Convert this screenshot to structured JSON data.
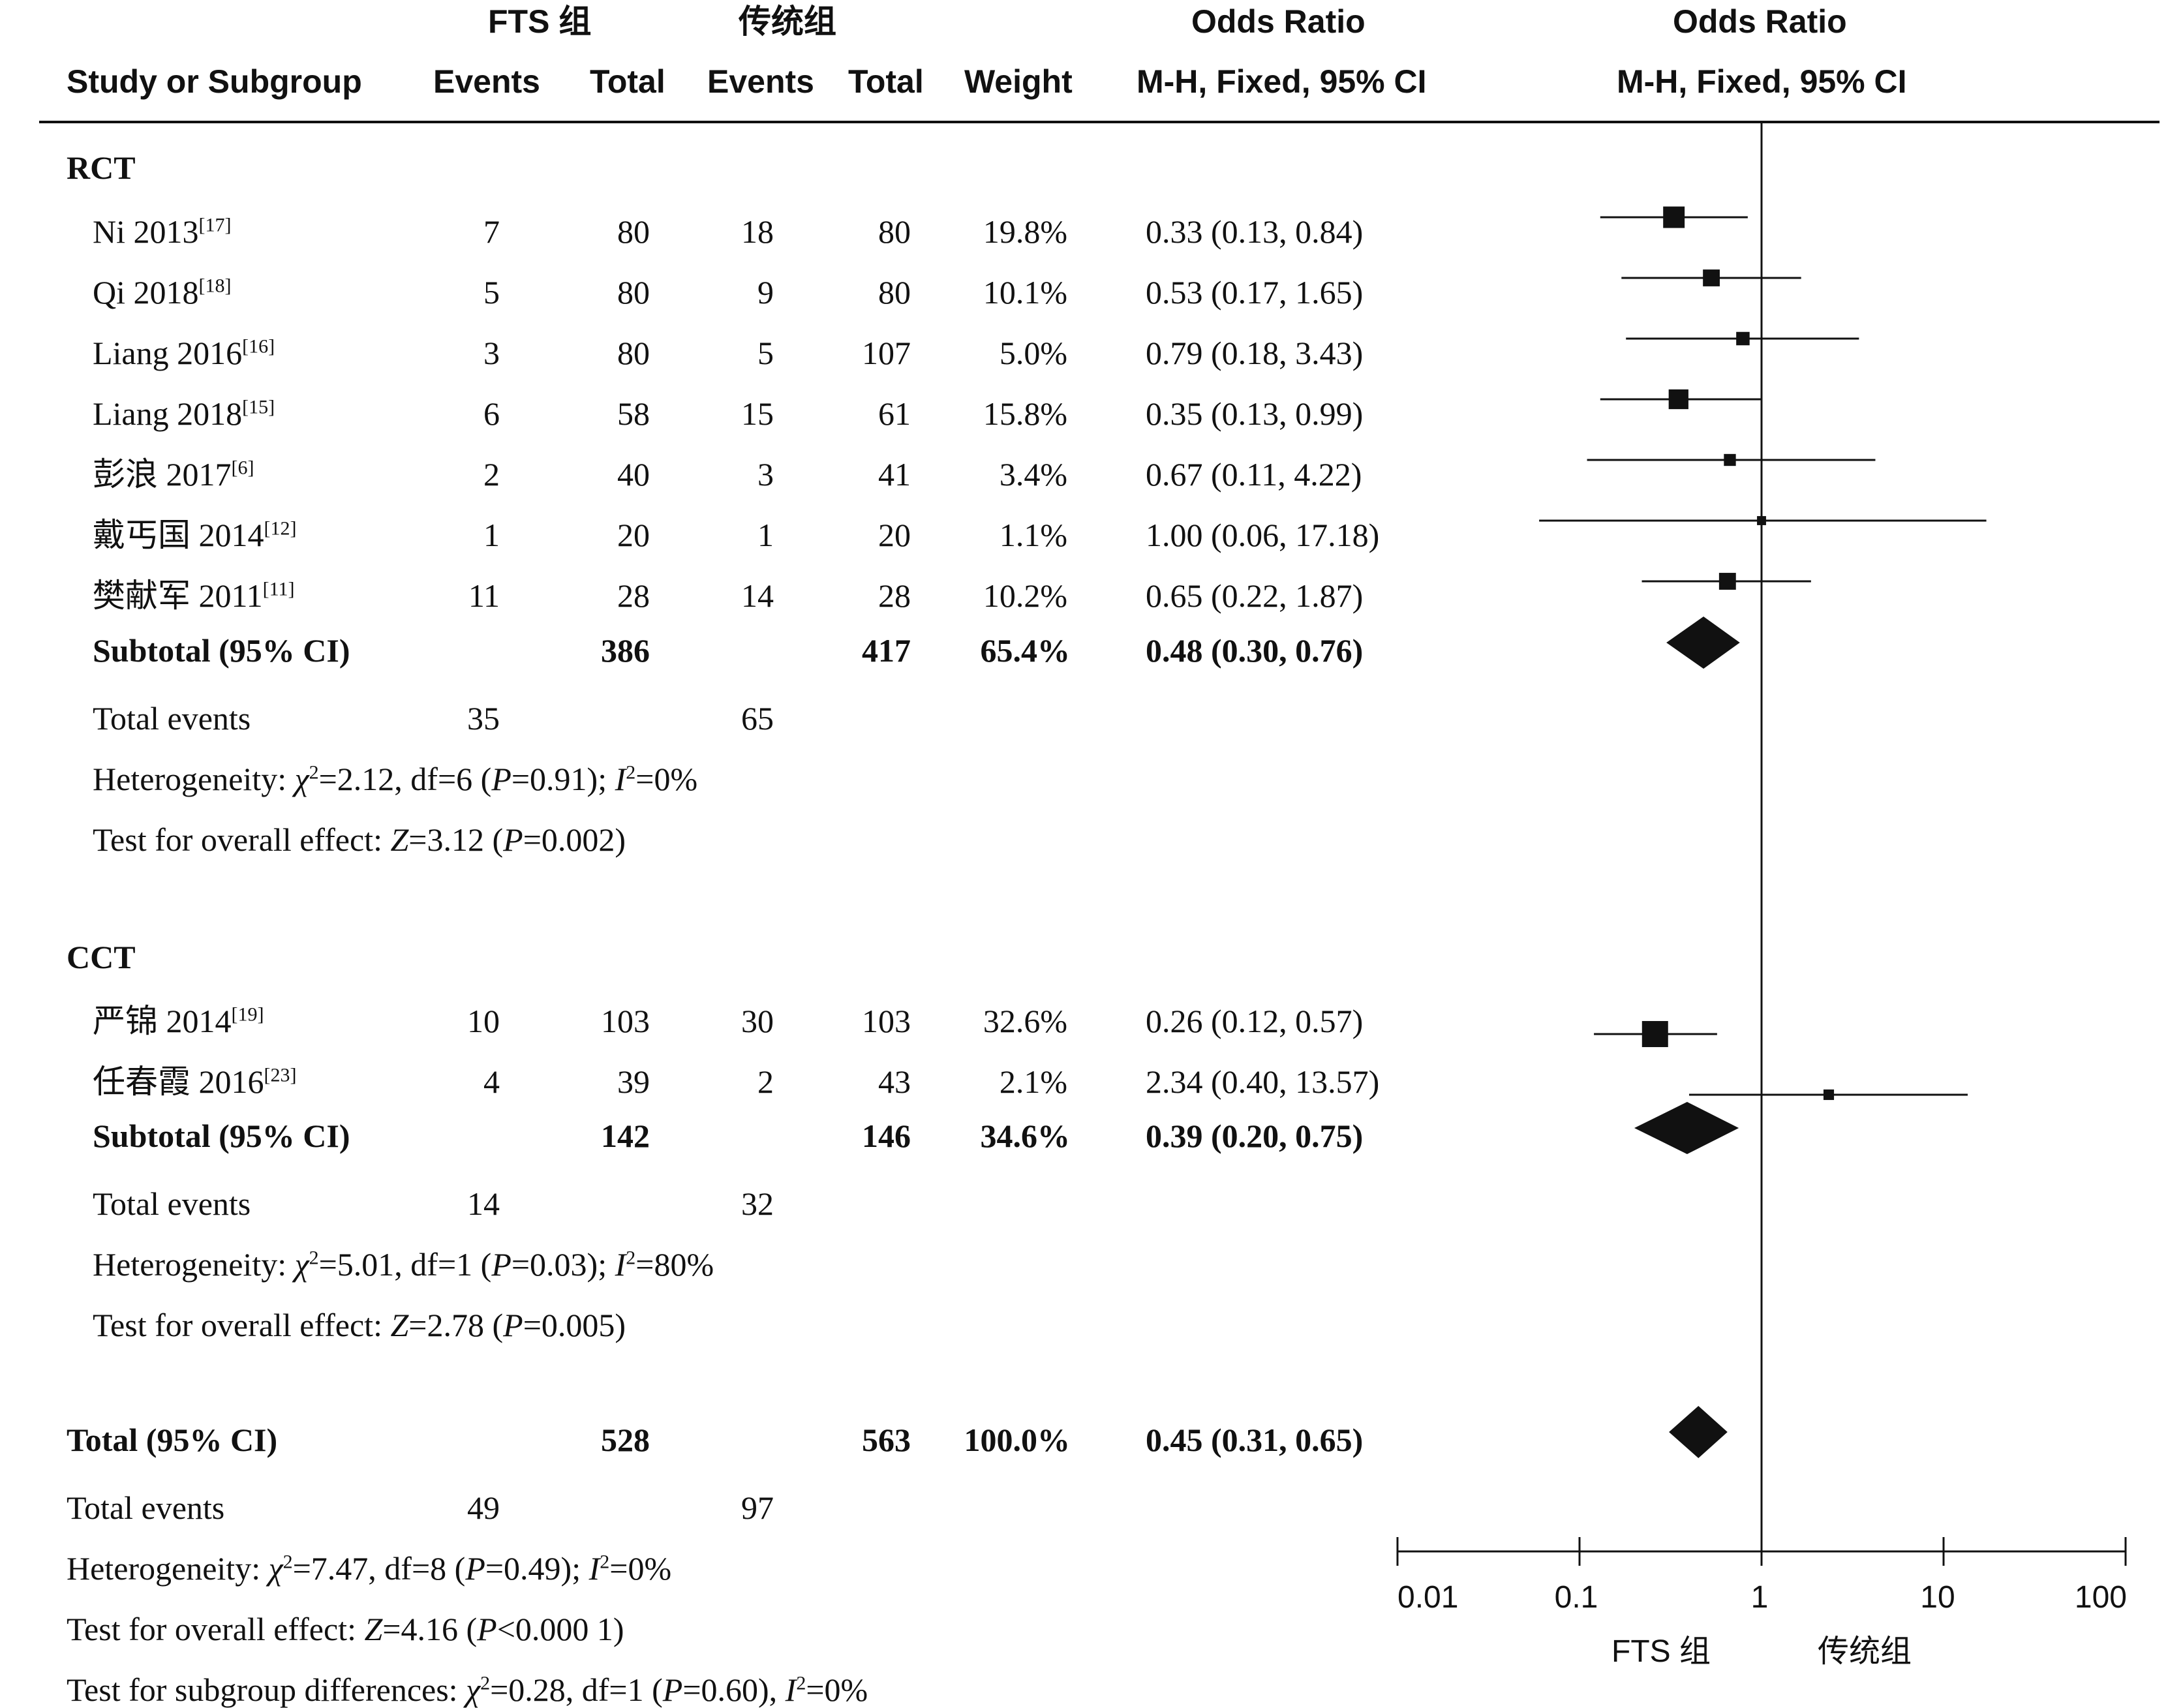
{
  "header": {
    "group1": "FTS 组",
    "group2": "传统组",
    "or_title_table": "Odds Ratio",
    "or_title_plot": "Odds Ratio",
    "study_col": "Study or Subgroup",
    "events1": "Events",
    "total1": "Total",
    "events2": "Events",
    "total2": "Total",
    "weight": "Weight",
    "method_table": "M-H, Fixed, 95% CI",
    "method_plot": "M-H, Fixed, 95% CI"
  },
  "subgroups": [
    {
      "label": "RCT",
      "studies": [
        {
          "name": "Ni 2013",
          "ref": "[17]",
          "e1": "7",
          "t1": "80",
          "e2": "18",
          "t2": "80",
          "weight": "19.8%",
          "ci": "0.33 (0.13, 0.84)"
        },
        {
          "name": "Qi 2018",
          "ref": "[18]",
          "e1": "5",
          "t1": "80",
          "e2": "9",
          "t2": "80",
          "weight": "10.1%",
          "ci": "0.53 (0.17, 1.65)"
        },
        {
          "name": "Liang 2016",
          "ref": "[16]",
          "e1": "3",
          "t1": "80",
          "e2": "5",
          "t2": "107",
          "weight": "5.0%",
          "ci": "0.79 (0.18, 3.43)"
        },
        {
          "name": "Liang 2018",
          "ref": "[15]",
          "e1": "6",
          "t1": "58",
          "e2": "15",
          "t2": "61",
          "weight": "15.8%",
          "ci": "0.35 (0.13, 0.99)"
        },
        {
          "name": "彭浪 2017",
          "ref": "[6]",
          "e1": "2",
          "t1": "40",
          "e2": "3",
          "t2": "41",
          "weight": "3.4%",
          "ci": "0.67 (0.11, 4.22)"
        },
        {
          "name": "戴丐国 2014",
          "ref": "[12]",
          "e1": "1",
          "t1": "20",
          "e2": "1",
          "t2": "20",
          "weight": "1.1%",
          "ci": "1.00 (0.06, 17.18)"
        },
        {
          "name": "樊献军 2011",
          "ref": "[11]",
          "e1": "11",
          "t1": "28",
          "e2": "14",
          "t2": "28",
          "weight": "10.2%",
          "ci": "0.65 (0.22, 1.87)"
        }
      ],
      "subtotal": {
        "label": "Subtotal (95% CI)",
        "t1": "386",
        "t2": "417",
        "weight": "65.4%",
        "ci": "0.48 (0.30, 0.76)"
      },
      "total_events": {
        "label": "Total events",
        "e1": "35",
        "e2": "65"
      },
      "heterogeneity": {
        "prefix": "Heterogeneity: ",
        "chi_sym": "χ",
        "chi_val": "=2.12, df=6 (",
        "p_sym": "P",
        "p_val": "=0.91); ",
        "i_sym": "I",
        "i_val": "=0%"
      },
      "overall": {
        "prefix": "Test for overall effect: ",
        "z_sym": "Z",
        "z_val": "=3.12 (",
        "p_sym": "P",
        "p_val": "=0.002)"
      }
    },
    {
      "label": "CCT",
      "studies": [
        {
          "name": "严锦 2014",
          "ref": "[19]",
          "e1": "10",
          "t1": "103",
          "e2": "30",
          "t2": "103",
          "weight": "32.6%",
          "ci": "0.26 (0.12, 0.57)"
        },
        {
          "name": "任春霞 2016",
          "ref": "[23]",
          "e1": "4",
          "t1": "39",
          "e2": "2",
          "t2": "43",
          "weight": "2.1%",
          "ci": "2.34 (0.40, 13.57)"
        }
      ],
      "subtotal": {
        "label": "Subtotal (95% CI)",
        "t1": "142",
        "t2": "146",
        "weight": "34.6%",
        "ci": "0.39 (0.20, 0.75)"
      },
      "total_events": {
        "label": "Total events",
        "e1": "14",
        "e2": "32"
      },
      "heterogeneity": {
        "prefix": "Heterogeneity: ",
        "chi_sym": "χ",
        "chi_val": "=5.01, df=1 (",
        "p_sym": "P",
        "p_val": "=0.03); ",
        "i_sym": "I",
        "i_val": "=80%"
      },
      "overall": {
        "prefix": "Test for overall effect: ",
        "z_sym": "Z",
        "z_val": "=2.78 (",
        "p_sym": "P",
        "p_val": "=0.005)"
      }
    }
  ],
  "total": {
    "label": "Total (95% CI)",
    "t1": "528",
    "t2": "563",
    "weight": "100.0%",
    "ci": "0.45 (0.31, 0.65)"
  },
  "total_events": {
    "label": "Total events",
    "e1": "49",
    "e2": "97"
  },
  "total_heterogeneity": {
    "prefix": "Heterogeneity: ",
    "chi_sym": "χ",
    "chi_val": "=7.47, df=8 (",
    "p_sym": "P",
    "p_val": "=0.49); ",
    "i_sym": "I",
    "i_val": "=0%"
  },
  "total_overall": {
    "prefix": "Test for overall effect: ",
    "z_sym": "Z",
    "z_val": "=4.16 (",
    "p_sym": "P",
    "p_val": "<0.000 1)"
  },
  "subgroup_diff": {
    "prefix": "Test for subgroup differences: ",
    "chi_sym": "χ",
    "chi_val": "=0.28, df=1 (",
    "p_sym": "P",
    "p_val": "=0.60), ",
    "i_sym": "I",
    "i_val": "=0%"
  },
  "axis": {
    "ticks": [
      "0.01",
      "0.1",
      "1",
      "10",
      "100"
    ],
    "favours_left": "FTS 组",
    "favours_right": "传统组"
  },
  "chart_data": {
    "type": "forest",
    "scale": "log",
    "xlim": [
      0.01,
      100
    ],
    "null_line": 1,
    "studies": [
      {
        "name": "Ni 2013",
        "or": 0.33,
        "lo": 0.13,
        "hi": 0.84,
        "weight": 19.8
      },
      {
        "name": "Qi 2018",
        "or": 0.53,
        "lo": 0.17,
        "hi": 1.65,
        "weight": 10.1
      },
      {
        "name": "Liang 2016",
        "or": 0.79,
        "lo": 0.18,
        "hi": 3.43,
        "weight": 5.0
      },
      {
        "name": "Liang 2018",
        "or": 0.35,
        "lo": 0.13,
        "hi": 0.99,
        "weight": 15.8
      },
      {
        "name": "彭浪 2017",
        "or": 0.67,
        "lo": 0.11,
        "hi": 4.22,
        "weight": 3.4
      },
      {
        "name": "戴丐国 2014",
        "or": 1.0,
        "lo": 0.06,
        "hi": 17.18,
        "weight": 1.1
      },
      {
        "name": "樊献军 2011",
        "or": 0.65,
        "lo": 0.22,
        "hi": 1.87,
        "weight": 10.2
      },
      {
        "name": "严锦 2014",
        "or": 0.26,
        "lo": 0.12,
        "hi": 0.57,
        "weight": 32.6
      },
      {
        "name": "任春霞 2016",
        "or": 2.34,
        "lo": 0.4,
        "hi": 13.57,
        "weight": 2.1
      }
    ],
    "summaries": [
      {
        "name": "Subtotal RCT",
        "or": 0.48,
        "lo": 0.3,
        "hi": 0.76
      },
      {
        "name": "Subtotal CCT",
        "or": 0.39,
        "lo": 0.2,
        "hi": 0.75
      },
      {
        "name": "Total",
        "or": 0.45,
        "lo": 0.31,
        "hi": 0.65
      }
    ]
  }
}
